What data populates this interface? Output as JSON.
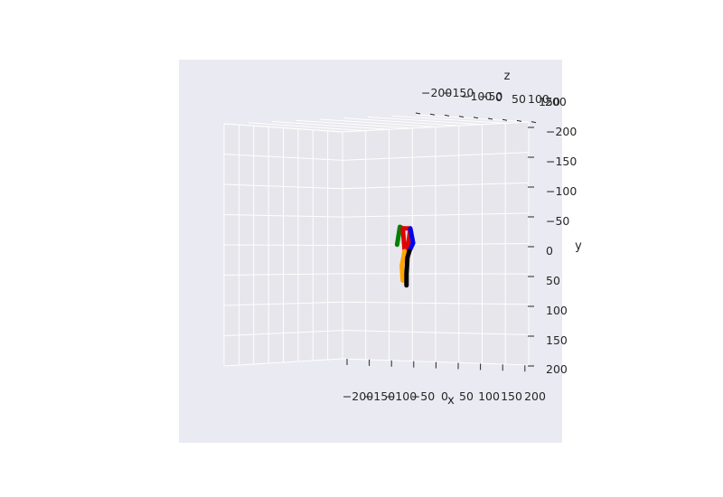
{
  "chart_data": {
    "type": "scatter3d",
    "title": "",
    "axes": {
      "x": {
        "label": "x",
        "ticks": [
          "−200",
          "−150",
          "−100",
          "−50",
          "0",
          "50",
          "100",
          "150",
          "200"
        ],
        "range": [
          -200,
          200
        ]
      },
      "y": {
        "label": "y",
        "ticks": [
          "−200",
          "−150",
          "−100",
          "−50",
          "0",
          "50",
          "100",
          "150",
          "200"
        ],
        "range": [
          -200,
          200
        ]
      },
      "z": {
        "label": "z",
        "ticks": [
          "−200",
          "−150",
          "−100",
          "−50",
          "0",
          "50",
          "100",
          "150",
          "200"
        ],
        "range": [
          -200,
          200
        ]
      }
    },
    "grid": true,
    "background": "#eaeaf2",
    "pane_color": "#e6e6ec",
    "grid_color": "#ffffff",
    "skeleton": [
      {
        "name": "green",
        "color": "#008000",
        "points": [
          [
            -18,
            -28
          ],
          [
            -24,
            -30
          ],
          [
            -30,
            -8
          ]
        ]
      },
      {
        "name": "red",
        "color": "#e00000",
        "points": [
          [
            -18,
            -28
          ],
          [
            -2,
            -28
          ],
          [
            -8,
            0
          ],
          [
            -14,
            -2
          ],
          [
            -18,
            -28
          ]
        ]
      },
      {
        "name": "blue",
        "color": "#0000ee",
        "points": [
          [
            -2,
            -28
          ],
          [
            4,
            -10
          ],
          [
            -4,
            0
          ]
        ]
      },
      {
        "name": "orange",
        "color": "#ffa500",
        "points": [
          [
            -14,
            0
          ],
          [
            -20,
            18
          ],
          [
            -18,
            36
          ]
        ]
      },
      {
        "name": "black",
        "color": "#000000",
        "points": [
          [
            -4,
            0
          ],
          [
            -8,
            8
          ],
          [
            -10,
            28
          ],
          [
            -10,
            42
          ]
        ]
      }
    ]
  }
}
